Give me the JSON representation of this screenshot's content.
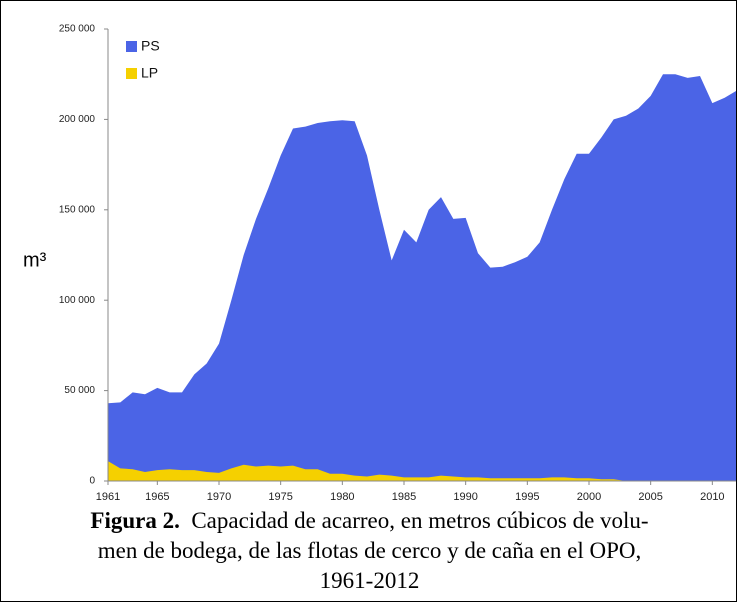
{
  "chart_data": {
    "type": "area",
    "ylabel": "m³",
    "x": [
      1961,
      1962,
      1963,
      1964,
      1965,
      1966,
      1967,
      1968,
      1969,
      1970,
      1971,
      1972,
      1973,
      1974,
      1975,
      1976,
      1977,
      1978,
      1979,
      1980,
      1981,
      1982,
      1983,
      1984,
      1985,
      1986,
      1987,
      1988,
      1989,
      1990,
      1991,
      1992,
      1993,
      1994,
      1995,
      1996,
      1997,
      1998,
      1999,
      2000,
      2001,
      2002,
      2003,
      2004,
      2005,
      2006,
      2007,
      2008,
      2009,
      2010,
      2011,
      2012
    ],
    "series": [
      {
        "name": "PS",
        "color": "#4b64e6",
        "values": [
          43000,
          43500,
          49000,
          48000,
          51500,
          49000,
          49000,
          59000,
          65000,
          76000,
          100000,
          125000,
          145000,
          162000,
          180000,
          195000,
          196000,
          198000,
          199000,
          199500,
          199000,
          180000,
          150000,
          122000,
          139000,
          132000,
          150000,
          157000,
          145000,
          145500,
          126000,
          118000,
          118500,
          121000,
          124000,
          132000,
          150000,
          167000,
          181000,
          181000,
          190000,
          200000,
          202000,
          206000,
          213000,
          225000,
          225000,
          223000,
          224000,
          209000,
          212000,
          216000
        ]
      },
      {
        "name": "LP",
        "color": "#f5d000",
        "values": [
          11000,
          7000,
          6500,
          5000,
          6000,
          6500,
          6000,
          6000,
          5000,
          4500,
          7000,
          9000,
          8000,
          8500,
          8000,
          8500,
          6500,
          6500,
          4000,
          4000,
          3000,
          2500,
          3500,
          3000,
          2000,
          2000,
          2000,
          3000,
          2500,
          2000,
          2000,
          1500,
          1500,
          1500,
          1500,
          1500,
          2000,
          2000,
          1500,
          1500,
          1000,
          1000,
          0,
          0,
          0,
          0,
          0,
          0,
          0,
          0,
          0,
          0
        ]
      }
    ],
    "xlim": [
      1961,
      2012
    ],
    "xticks": [
      1961,
      1965,
      1970,
      1975,
      1980,
      1985,
      1990,
      1995,
      2000,
      2005,
      2010
    ],
    "ylim": [
      0,
      250000
    ],
    "yticks": [
      0,
      {
        "value": 50000,
        "label": "50 000"
      },
      {
        "value": 100000,
        "label": "100 000"
      },
      {
        "value": 150000,
        "label": "150 000"
      },
      {
        "value": 200000,
        "label": "200 000"
      },
      {
        "value": 250000,
        "label": "250 000"
      }
    ],
    "legend": "upper left",
    "caption": {
      "label": "Figura 2.",
      "lines": [
        "Capacidad de acarreo, en metros cúbicos de volu-",
        "men de bodega, de las flotas de cerco y de caña en el OPO,",
        "1961-2012"
      ]
    }
  }
}
